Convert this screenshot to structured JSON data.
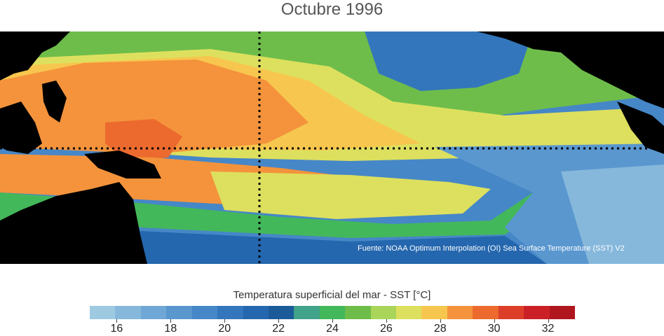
{
  "title": "Octubre 1996",
  "source_note": "Fuente: NOAA Optimum Interpolation (OI) Sea Surface Temperature (SST) V2",
  "colorbar": {
    "label": "Temperatura superficial del mar - SST  [°C]",
    "min": 15,
    "max": 33,
    "colors": [
      "#9ecae1",
      "#86b8dc",
      "#6fa7d6",
      "#5a97cf",
      "#4687c7",
      "#3476bb",
      "#2567ae",
      "#1b5b9a",
      "#41a38a",
      "#43b85a",
      "#6ebd4a",
      "#a9d55a",
      "#dde05e",
      "#f7c64e",
      "#f4933c",
      "#ec6a2e",
      "#dd3e28",
      "#cc2027",
      "#b0161e"
    ],
    "tick_labels": [
      "16",
      "18",
      "20",
      "22",
      "24",
      "26",
      "28",
      "30",
      "32"
    ],
    "tick_values": [
      16,
      18,
      20,
      22,
      24,
      26,
      28,
      30,
      32
    ]
  },
  "map": {
    "region": "Pacífico tropical",
    "variable": "SST",
    "land_color": "#000000",
    "reference_lines": [
      "equator-dotted-line",
      "dateline-dotted-line"
    ]
  }
}
